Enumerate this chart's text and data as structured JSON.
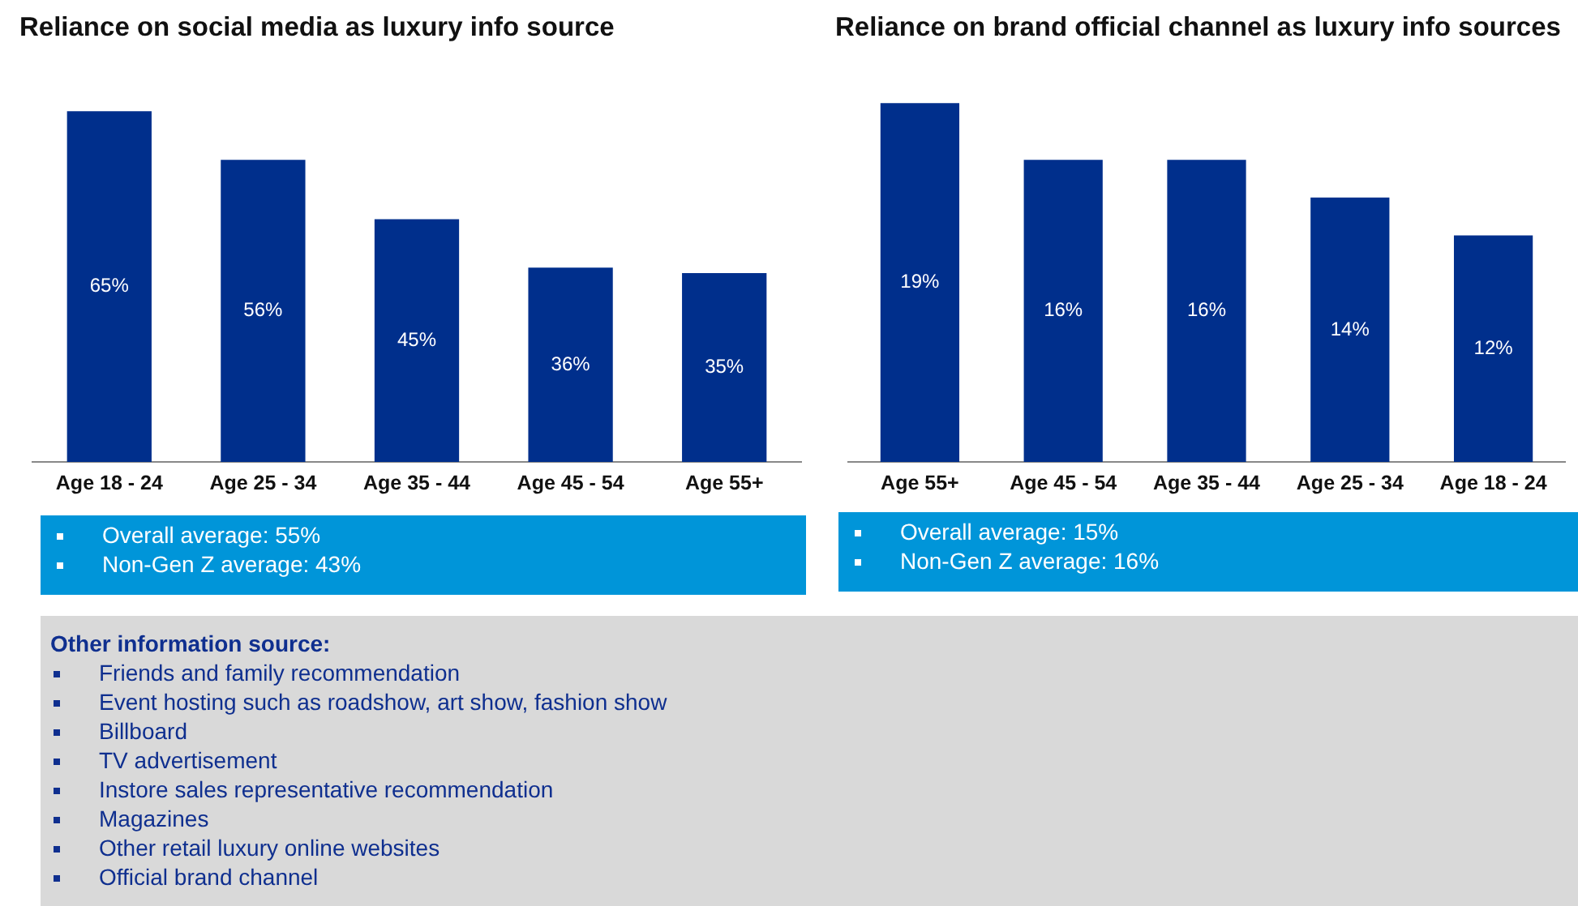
{
  "chart_data": [
    {
      "type": "bar",
      "title": "Reliance on social media as luxury info source",
      "categories": [
        "Age 18 - 24",
        "Age 25 - 34",
        "Age 35 - 44",
        "Age 45 - 54",
        "Age 55+"
      ],
      "values": [
        65,
        56,
        45,
        36,
        35
      ],
      "value_labels": [
        "65%",
        "56%",
        "45%",
        "36%",
        "35%"
      ],
      "color": "#002f8c",
      "tick_labels": "x",
      "annotations": [
        "Overall average: 55%",
        "Non-Gen Z average: 43%"
      ]
    },
    {
      "type": "bar",
      "title": "Reliance on brand official channel as luxury info sources",
      "categories": [
        "Age 55+",
        "Age 45 - 54",
        "Age 35 - 44",
        "Age 25 - 34",
        "Age 18 - 24"
      ],
      "values": [
        19,
        16,
        16,
        14,
        12
      ],
      "value_labels": [
        "19%",
        "16%",
        "16%",
        "14%",
        "12%"
      ],
      "color": "#002f8c",
      "tick_labels": "x",
      "annotations": [
        "Overall average: 15%",
        "Non-Gen Z average: 16%"
      ]
    },
    {
      "type": "other",
      "title": "Other information source:",
      "annotations": [
        "Friends and family recommendation",
        "Event hosting such as roadshow, art show, fashion show",
        "Billboard",
        "TV advertisement",
        "Instore sales representative recommendation",
        "Magazines",
        "Other retail luxury online websites",
        "Official brand channel"
      ]
    }
  ]
}
